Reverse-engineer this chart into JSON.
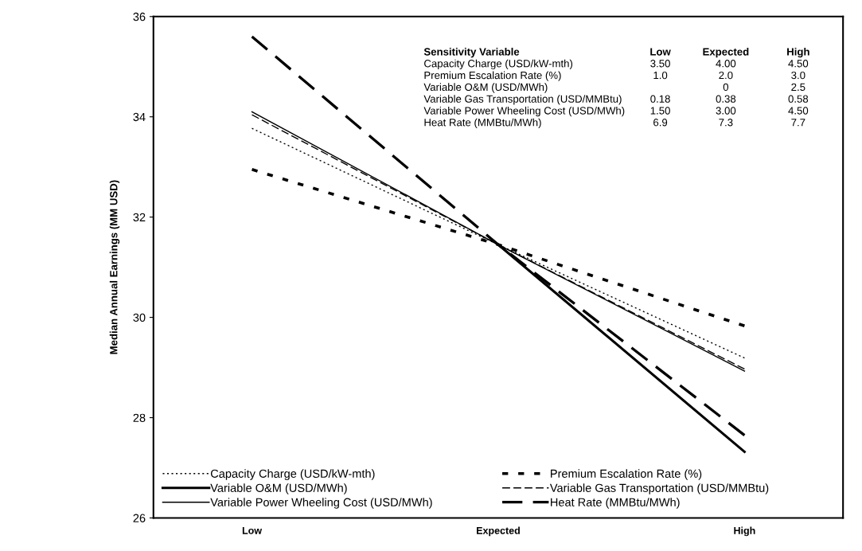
{
  "chart_data": {
    "type": "line",
    "ylabel": "Median Annual Earnings (MM USD)",
    "categories": [
      "Low",
      "Expected",
      "High"
    ],
    "ylim": [
      26,
      36
    ],
    "yticks": [
      26,
      28,
      30,
      32,
      34,
      36
    ],
    "grid": false,
    "legend": "bottom left",
    "marker": "none",
    "series": [
      {
        "name": "Capacity Charge (USD/kW-mth)",
        "color": "#000000",
        "line_style": "dotted",
        "values": [
          33.77,
          31.45,
          29.19
        ]
      },
      {
        "name": "Premium Escalation Rate (%)",
        "color": "#000000",
        "line_style": "dotted",
        "values": [
          32.95,
          31.45,
          29.83
        ]
      },
      {
        "name": "Variable O&M (USD/MWh)",
        "color": "#000000",
        "line_style": "solid",
        "values": [
          null,
          31.45,
          27.32
        ]
      },
      {
        "name": "Variable Gas Transportation (USD/MMBtu)",
        "color": "#000000",
        "line_style": "dashed",
        "values": [
          34.04,
          31.45,
          28.97
        ]
      },
      {
        "name": "Variable Power Wheeling Cost (USD/MWh)",
        "color": "#000000",
        "line_style": "solid",
        "values": [
          34.1,
          31.45,
          28.93
        ]
      },
      {
        "name": "Heat Rate (MMBtu/MWh)",
        "color": "#000000",
        "line_style": "dashed",
        "values": [
          35.6,
          31.45,
          27.65
        ]
      }
    ],
    "annotations": [
      "Sensitivity Variable",
      "Low",
      "Expected",
      "High",
      "Capacity Charge (USD/kW-mth)",
      "3.50",
      "4.00",
      "4.50",
      "Premium Escalation Rate (%)",
      "1.0",
      "2.0",
      "3.0",
      "Variable O&M (USD/MWh)",
      null,
      "0",
      "2.5",
      "Variable Gas Transportation (USD/MMBtu)",
      "0.18",
      "0.38",
      "0.58",
      "Variable Power Wheeling Cost (USD/MWh)",
      "1.50",
      "3.00",
      "4.50",
      "Heat Rate (MMBtu/MWh)",
      "6.9",
      "7.3",
      "7.7"
    ]
  }
}
